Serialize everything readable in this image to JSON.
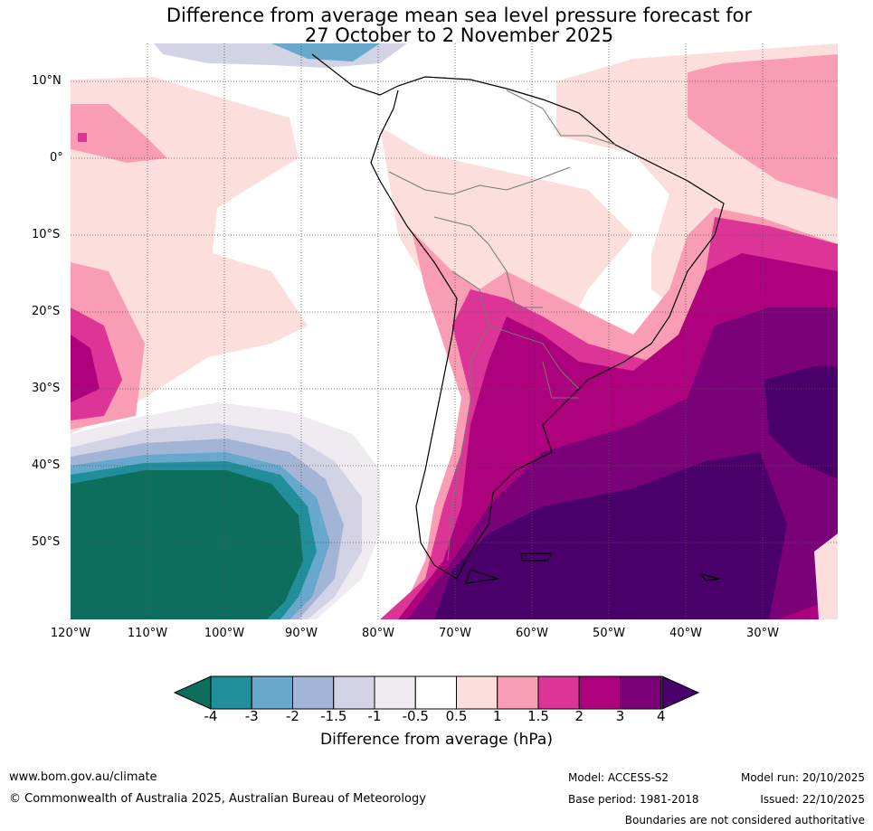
{
  "title_line1": "Difference from average mean sea level pressure forecast for",
  "title_line2": "27 October to 2 November 2025",
  "lat_labels": [
    "10°N",
    "0°",
    "10°S",
    "20°S",
    "30°S",
    "40°S",
    "50°S"
  ],
  "lon_labels": [
    "120°W",
    "110°W",
    "100°W",
    "90°W",
    "80°W",
    "70°W",
    "60°W",
    "50°W",
    "40°W",
    "30°W"
  ],
  "colorbar": {
    "label": "Difference from average (hPa)",
    "ticks": [
      "-4",
      "-3",
      "-2",
      "-1.5",
      "-1",
      "-0.5",
      "0.5",
      "1",
      "1.5",
      "2",
      "3",
      "4"
    ],
    "colors": [
      "#0e6e5e",
      "#218f9b",
      "#67a8cc",
      "#a3b5d6",
      "#d3d3e6",
      "#efebf1",
      "#ffffff",
      "#fcdfdc",
      "#f89db3",
      "#dd3497",
      "#ae017e",
      "#7a0177",
      "#49006a"
    ]
  },
  "footer": {
    "website": "www.bom.gov.au/climate",
    "copyright": "© Commonwealth of Australia 2025, Australian Bureau of Meteorology",
    "model": "Model: ACCESS-S2",
    "base_period": "Base period: 1981-2018",
    "model_run": "Model run: 20/10/2025",
    "issued": "Issued: 22/10/2025",
    "disclaimer": "Boundaries are not considered authoritative"
  }
}
